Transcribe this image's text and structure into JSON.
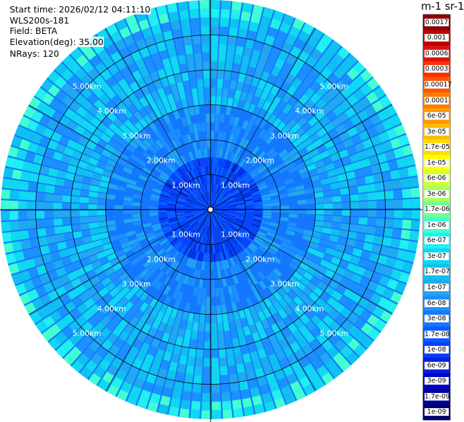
{
  "info": {
    "start_time": "Start time: 2026/02/12 04:11:10",
    "instrument": "WLS200s-181",
    "field": "Field: BETA",
    "elevation": "Elevation(deg): 35.00",
    "nrays": "NRays: 120"
  },
  "colorbar": {
    "title": "m-1 sr-1",
    "labels": [
      "0.0017",
      "0.001",
      "0.0006",
      "0.0003",
      "0.00017",
      "0.0001",
      "6e-05",
      "3e-05",
      "1.7e-05",
      "1e-05",
      "6e-06",
      "3e-06",
      "1.7e-06",
      "1e-06",
      "6e-07",
      "3e-07",
      "1.7e-07",
      "1e-07",
      "6e-08",
      "3e-08",
      "1.7e-08",
      "1e-08",
      "6e-09",
      "3e-09",
      "1.7e-09",
      "1e-09"
    ],
    "colors": [
      "#8b0000",
      "#c00000",
      "#e01010",
      "#ff3000",
      "#ff5500",
      "#ff7a00",
      "#ff9a00",
      "#ffbb00",
      "#ffdd00",
      "#ffff00",
      "#d6ff30",
      "#a8ff60",
      "#70ff90",
      "#40ffd0",
      "#20f0f0",
      "#10d8f0",
      "#10c0f0",
      "#20a8f0",
      "#1c90ff",
      "#1478ff",
      "#0a5cff",
      "#0040ff",
      "#0020e0",
      "#0000c8",
      "#00009c",
      "#000070"
    ]
  },
  "chart_data": {
    "type": "polar",
    "field": "BETA",
    "units": "m-1 sr-1",
    "elevation_deg": 35.0,
    "nrays": 120,
    "range_rings_km": [
      1.0,
      2.0,
      3.0,
      4.0,
      5.0
    ],
    "ring_labels": [
      "1.00km",
      "2.00km",
      "3.00km",
      "4.00km",
      "5.00km"
    ],
    "max_range_km": 6.0,
    "typical_beta": {
      "near_range_0_to_1km": "3e-08 to 1e-08",
      "mid_range_1_to_3km": "1e-07 to 6e-08",
      "far_range_4_to_6km": "1e-07 to 3e-07"
    }
  }
}
